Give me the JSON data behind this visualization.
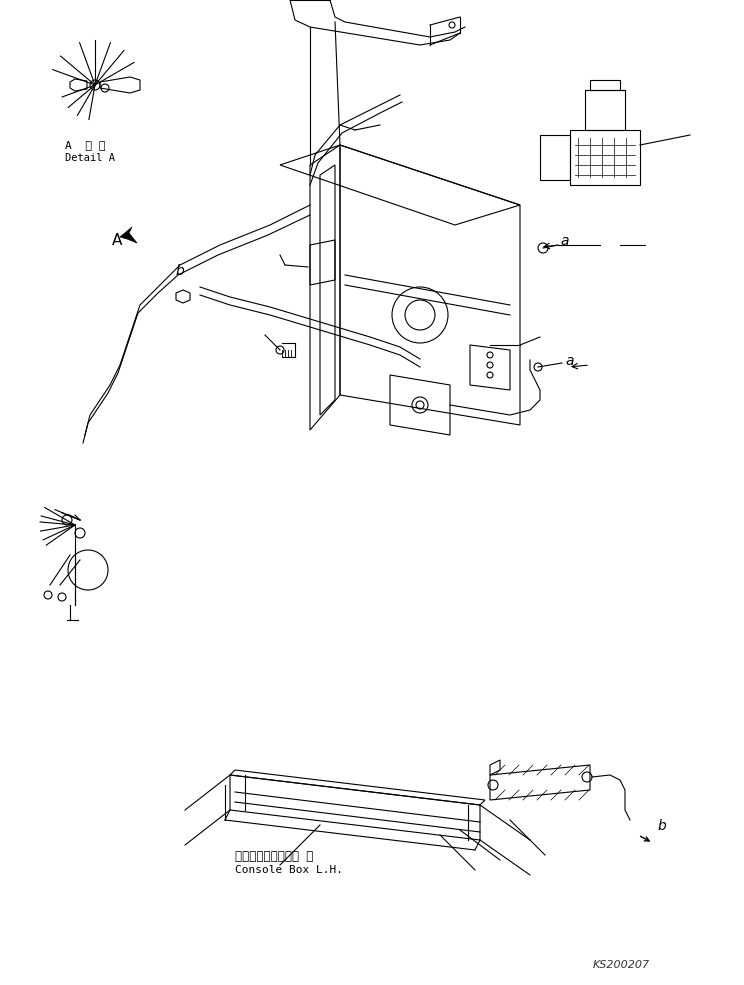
{
  "bg_color": "#ffffff",
  "line_color": "#000000",
  "fig_width": 7.44,
  "fig_height": 9.85,
  "dpi": 100,
  "watermark": "KS200207",
  "label_a_detail_jp": "A  詳 細",
  "label_a_detail_en": "Detail A",
  "label_console_jp": "コンソールボックス 左",
  "label_console_en": "Console Box L.H."
}
